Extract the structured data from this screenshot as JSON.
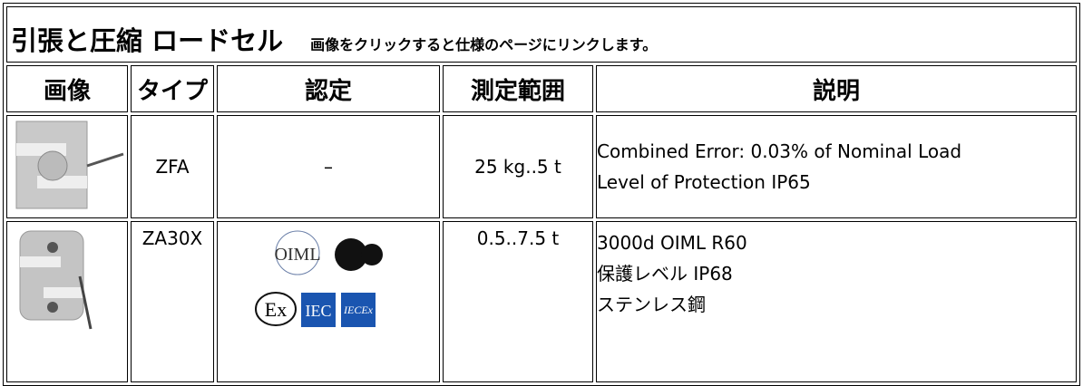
{
  "header": {
    "title": "引張と圧縮 ロードセル",
    "note": "画像をクリックすると仕様のページにリンクします。"
  },
  "table": {
    "columns": [
      "画像",
      "タイプ",
      "認定",
      "測定範囲",
      "説明"
    ],
    "rows": [
      {
        "type": "ZFA",
        "certification": "–",
        "range": "25 kg..5 t",
        "description": [
          "Combined Error: 0.03% of Nominal Load",
          "Level of Protection IP65"
        ]
      },
      {
        "type": "ZA30X",
        "logos": [
          "OIML",
          "Ex",
          "IEC",
          "IECEx"
        ],
        "range": "0.5..7.5 t",
        "description": [
          "3000d OIML R60",
          "保護レベル IP68",
          "ステンレス鋼"
        ]
      }
    ]
  }
}
